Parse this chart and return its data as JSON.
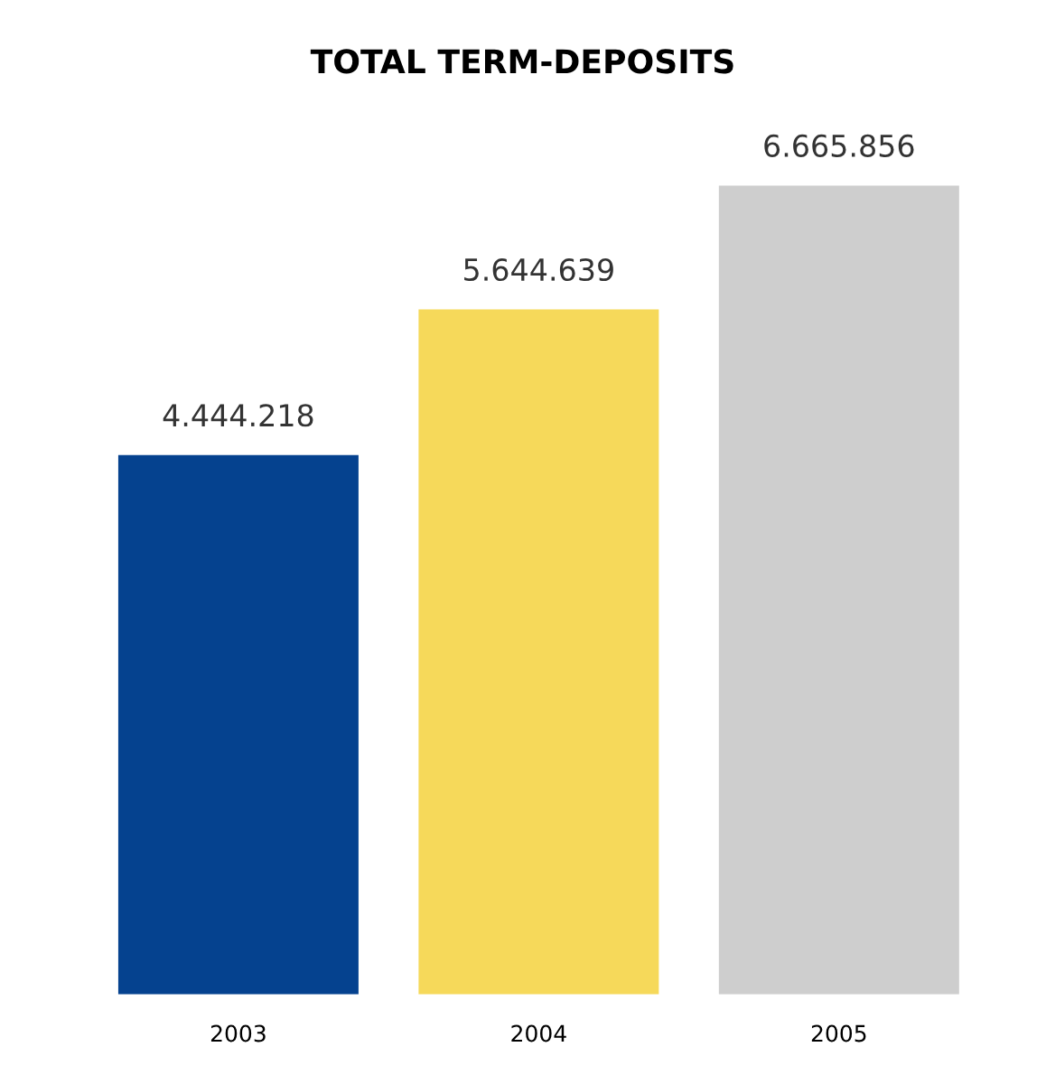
{
  "chart_data": {
    "type": "bar",
    "title": "TOTAL TERM-DEPOSITS",
    "categories": [
      "2003",
      "2004",
      "2005"
    ],
    "values": [
      4444218,
      5644639,
      6665856
    ],
    "colors": [
      "#05428f",
      "#f6d95a",
      "#cecece"
    ],
    "value_labels": [
      "4.444.218",
      "5.644.639",
      "6.665.856"
    ],
    "grid": false
  }
}
